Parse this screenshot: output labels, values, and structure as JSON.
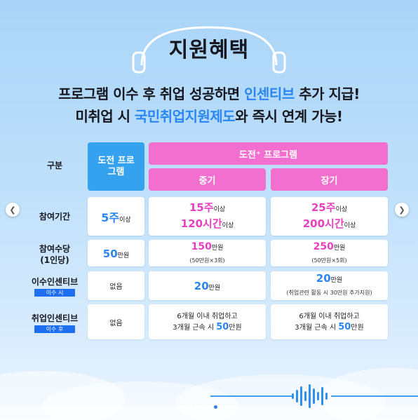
{
  "title": "지원혜택",
  "subtitle": {
    "line1_prefix": "프로그램 이수 후 취업 성공하면 ",
    "line1_highlight": "인센티브",
    "line1_suffix": " 추가 지급!",
    "line2_prefix": "미취업 시 ",
    "line2_highlight": "국민취업지원제도",
    "line2_suffix": "와 즉시 연계 가능!"
  },
  "table": {
    "corner_label": "구분",
    "col_challenge": "도전 프로그램",
    "col_group": "도전⁺ 프로그램",
    "col_mid": "중기",
    "col_long": "장기",
    "rows": {
      "period": {
        "label": "참여기간",
        "challenge": {
          "big": "5주",
          "unit": "이상"
        },
        "mid": {
          "big1": "15주",
          "unit1": "이상",
          "big2": "120시간",
          "unit2": "이상"
        },
        "long": {
          "big1": "25주",
          "unit1": "이상",
          "big2": "200시간",
          "unit2": "이상"
        }
      },
      "allowance": {
        "label": "참여수당",
        "label2": "(1인당)",
        "challenge": {
          "big": "50",
          "unit": "만원"
        },
        "mid": {
          "big": "150",
          "unit": "만원",
          "note": "(50만원×3회)"
        },
        "long": {
          "big": "250",
          "unit": "만원",
          "note": "(50만원×5회)"
        }
      },
      "completion": {
        "label": "이수인센티브",
        "tag": "이수 시",
        "challenge": "없음",
        "mid": {
          "big": "20",
          "unit": "만원"
        },
        "long": {
          "big": "20",
          "unit": "만원",
          "note": "(취업관련 활동 시 30만원 추가지원)"
        }
      },
      "employment": {
        "label": "취업인센티브",
        "tag": "이수 후",
        "challenge": "없음",
        "mid": {
          "line1": "6개월 이내 취업하고",
          "line2_prefix": "3개월 근속 시 ",
          "big": "50",
          "unit": "만원"
        },
        "long": {
          "line1": "6개월 이내 취업하고",
          "line2_prefix": "3개월 근속 시 ",
          "big": "50",
          "unit": "만원"
        }
      }
    }
  },
  "nav": {
    "prev": "❮",
    "next": "❯"
  },
  "colors": {
    "accent_blue": "#34a2ee",
    "accent_pink": "#f26fd0",
    "highlight": "#2a86f0"
  }
}
